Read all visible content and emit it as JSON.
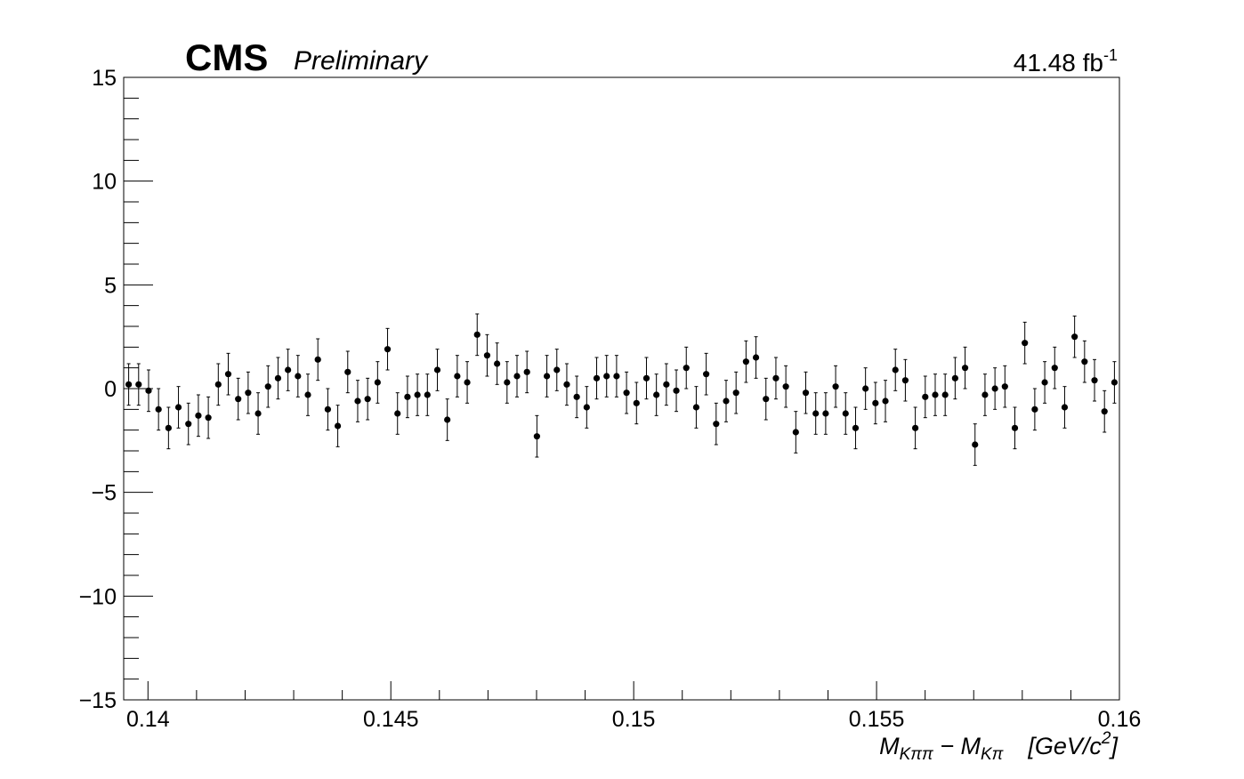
{
  "chart_data": {
    "type": "scatter",
    "title": "CMS",
    "subtitle": "Preliminary",
    "luminosity": {
      "text": "41.48 fb",
      "sup": "-1"
    },
    "x_label_parts": [
      "M",
      "Kππ",
      " − M",
      "Kπ",
      "[GeV/c",
      "2",
      "]"
    ],
    "x": [
      0.1396025,
      0.1398075,
      0.1400125,
      0.1402175,
      0.1404225,
      0.1406275,
      0.1408325,
      0.1410375,
      0.1412425,
      0.1414475,
      0.1416525,
      0.1418575,
      0.1420625,
      0.1422675,
      0.1424725,
      0.1426775,
      0.1428825,
      0.1430875,
      0.1432925,
      0.1434975,
      0.1437025,
      0.1439075,
      0.1441125,
      0.1443175,
      0.1445225,
      0.1447275,
      0.1449325,
      0.1451375,
      0.1453425,
      0.1455475,
      0.1457525,
      0.1459575,
      0.1461625,
      0.1463675,
      0.1465725,
      0.1467775,
      0.1469825,
      0.1471875,
      0.1473925,
      0.1475975,
      0.1478025,
      0.1480075,
      0.1482125,
      0.1484175,
      0.1486225,
      0.1488275,
      0.1490325,
      0.1492375,
      0.1494425,
      0.1496475,
      0.1498525,
      0.1500575,
      0.1502625,
      0.1504675,
      0.1506725,
      0.1508775,
      0.1510825,
      0.1512875,
      0.1514925,
      0.1516975,
      0.1519025,
      0.1521075,
      0.1523125,
      0.1525175,
      0.1527225,
      0.1529275,
      0.1531325,
      0.1533375,
      0.1535425,
      0.1537475,
      0.1539525,
      0.1541575,
      0.1543625,
      0.1545675,
      0.1547725,
      0.1549775,
      0.1551825,
      0.1553875,
      0.1555925,
      0.1557975,
      0.1560025,
      0.1562075,
      0.1564125,
      0.1566175,
      0.1568225,
      0.1570275,
      0.1572325,
      0.1574375,
      0.1576425,
      0.1578475,
      0.1580525,
      0.1582575,
      0.1584625,
      0.1586675,
      0.1588725,
      0.1590775,
      0.1592825,
      0.1594875,
      0.1596925,
      0.1598975
    ],
    "series": [
      {
        "color": "#000000",
        "values": [
          0.2,
          0.2,
          -0.1,
          -1.0,
          -1.9,
          -0.9,
          -1.7,
          -1.3,
          -1.4,
          0.2,
          0.7,
          -0.5,
          -0.2,
          -1.2,
          0.1,
          0.5,
          0.9,
          0.6,
          -0.3,
          1.4,
          -1.0,
          -1.8,
          0.8,
          -0.6,
          -0.5,
          0.3,
          1.9,
          -1.2,
          -0.4,
          -0.3,
          -0.3,
          0.9,
          -1.5,
          0.6,
          0.3,
          2.6,
          1.6,
          1.2,
          0.3,
          0.6,
          0.8,
          -2.3,
          0.6,
          0.9,
          0.2,
          -0.4,
          -0.9,
          0.5,
          0.6,
          0.6,
          -0.2,
          -0.7,
          0.5,
          -0.3,
          0.2,
          -0.1,
          1.0,
          -0.9,
          0.7,
          -1.7,
          -0.6,
          -0.2,
          1.3,
          1.5,
          -0.5,
          0.5,
          0.1,
          -2.1,
          -0.2,
          -1.2,
          -1.2,
          0.1,
          -1.2,
          -1.9,
          0.0,
          -0.7,
          -0.6,
          0.9,
          0.4,
          -1.9,
          -0.4,
          -0.3,
          -0.3,
          0.5,
          1.0,
          -2.7,
          -0.3,
          0.0,
          0.1,
          -1.9,
          2.2,
          -1.0,
          0.3,
          1.0,
          -0.9,
          2.5,
          1.3,
          0.4,
          -1.1,
          0.3
        ],
        "errors": [
          1,
          1,
          1,
          1,
          1,
          1,
          1,
          1,
          1,
          1,
          1,
          1,
          1,
          1,
          1,
          1,
          1,
          1,
          1,
          1,
          1,
          1,
          1,
          1,
          1,
          1,
          1,
          1,
          1,
          1,
          1,
          1,
          1,
          1,
          1,
          1,
          1,
          1,
          1,
          1,
          1,
          1,
          1,
          1,
          1,
          1,
          1,
          1,
          1,
          1,
          1,
          1,
          1,
          1,
          1,
          1,
          1,
          1,
          1,
          1,
          1,
          1,
          1,
          1,
          1,
          1,
          1,
          1,
          1,
          1,
          1,
          1,
          1,
          1,
          1,
          1,
          1,
          1,
          1,
          1,
          1,
          1,
          1,
          1,
          1,
          1,
          1,
          1,
          1,
          1,
          1,
          1,
          1,
          1,
          1,
          1,
          1,
          1,
          1,
          1
        ]
      }
    ],
    "xlim": [
      0.1395,
      0.16
    ],
    "ylim": [
      -15,
      15
    ],
    "xticks": [
      0.14,
      0.145,
      0.15,
      0.155,
      0.16
    ],
    "yticks": [
      {
        "value": -15,
        "label": "−15"
      },
      {
        "value": -10,
        "label": "−10"
      },
      {
        "value": -5,
        "label": "−5"
      },
      0,
      5,
      10,
      15
    ],
    "xminorticks": [
      0.141,
      0.142,
      0.143,
      0.144,
      0.146,
      0.147,
      0.148,
      0.149,
      0.151,
      0.152,
      0.153,
      0.154,
      0.156,
      0.157,
      0.158,
      0.159
    ],
    "yminorticks": [
      -14,
      -13,
      -12,
      -11,
      -9,
      -8,
      -7,
      -6,
      -4,
      -3,
      -2,
      -1,
      1,
      2,
      3,
      4,
      6,
      7,
      8,
      9,
      11,
      12,
      13,
      14
    ],
    "grid": false
  }
}
